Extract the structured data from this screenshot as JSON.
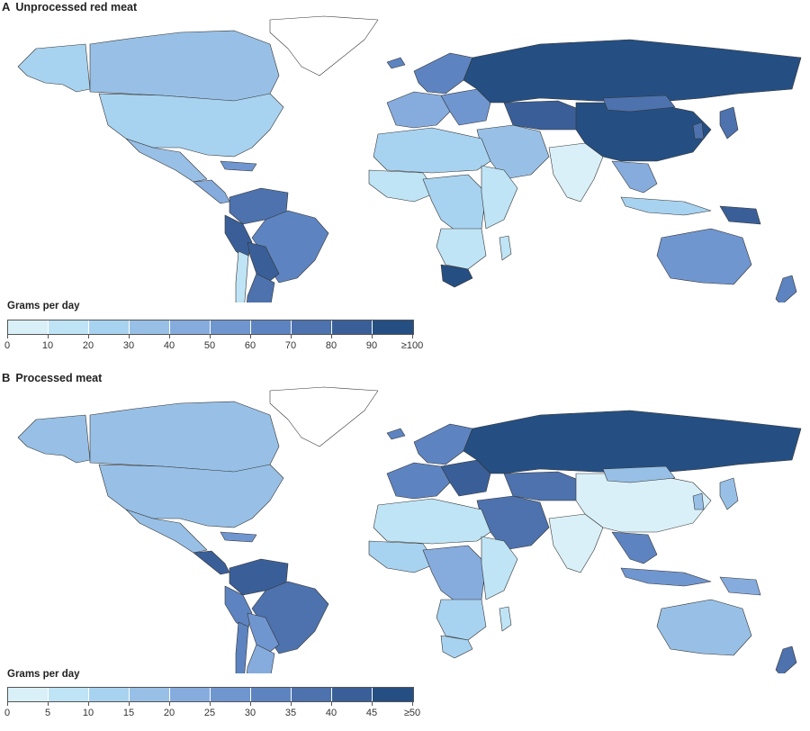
{
  "colors": {
    "c0": "#daf0f8",
    "c1": "#bfe4f5",
    "c2": "#a8d3f0",
    "c3": "#98c0e6",
    "c4": "#86acde",
    "c5": "#7096d0",
    "c6": "#5d84c0",
    "c7": "#4d72ad",
    "c8": "#3a5f98",
    "c9": "#254f82",
    "none": "#ffffff"
  },
  "panels": [
    {
      "letter": "A",
      "title": "Unprocessed red meat",
      "legend_title": "Grams per day",
      "ticks": [
        "0",
        "10",
        "20",
        "30",
        "40",
        "50",
        "60",
        "70",
        "80",
        "90",
        "≥100"
      ],
      "regions": {
        "canada": "c3",
        "alaska": "c2",
        "usa": "c2",
        "mexico": "c3",
        "central_america": "c4",
        "caribbean": "c5",
        "colombia_venezuela": "c7",
        "brazil": "c6",
        "peru_ecuador": "c8",
        "bolivia_paraguay": "c8",
        "argentina": "c7",
        "chile": "c1",
        "greenland": "none",
        "iceland_scandinavia": "c6",
        "western_europe": "c4",
        "eastern_europe": "c5",
        "russia": "c9",
        "central_asia": "c8",
        "middle_east": "c3",
        "north_africa": "c2",
        "west_africa": "c1",
        "central_africa": "c2",
        "east_africa": "c1",
        "southern_africa": "c1",
        "south_africa": "c9",
        "madagascar": "c1",
        "india": "c0",
        "china": "c9",
        "mongolia": "c7",
        "southeast_asia": "c4",
        "japan_korea": "c7",
        "indonesia": "c2",
        "papua": "c8",
        "australia": "c5",
        "new_zealand": "c6"
      }
    },
    {
      "letter": "B",
      "title": "Processed meat",
      "legend_title": "Grams per day",
      "ticks": [
        "0",
        "5",
        "10",
        "15",
        "20",
        "25",
        "30",
        "35",
        "40",
        "45",
        "≥50"
      ],
      "regions": {
        "canada": "c3",
        "alaska": "c3",
        "usa": "c3",
        "mexico": "c3",
        "central_america": "c8",
        "caribbean": "c5",
        "colombia_venezuela": "c8",
        "brazil": "c7",
        "peru_ecuador": "c6",
        "bolivia_paraguay": "c5",
        "argentina": "c4",
        "chile": "c6",
        "greenland": "none",
        "iceland_scandinavia": "c6",
        "western_europe": "c6",
        "eastern_europe": "c8",
        "russia": "c9",
        "central_asia": "c7",
        "middle_east": "c7",
        "north_africa": "c1",
        "west_africa": "c2",
        "central_africa": "c4",
        "east_africa": "c1",
        "southern_africa": "c2",
        "south_africa": "c2",
        "madagascar": "c1",
        "india": "c0",
        "china": "c0",
        "mongolia": "c3",
        "southeast_asia": "c6",
        "japan_korea": "c3",
        "indonesia": "c5",
        "papua": "c4",
        "australia": "c3",
        "new_zealand": "c7"
      }
    }
  ]
}
